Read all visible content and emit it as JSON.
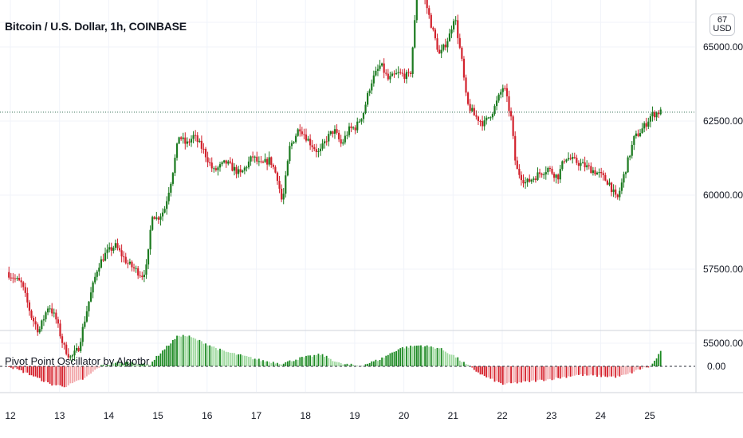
{
  "header": {
    "title": "Bitcoin / U.S. Dollar, 1h, COINBASE"
  },
  "currency_button": {
    "line1": "67",
    "line2": "USD"
  },
  "oscillator": {
    "title": "Pivot Point Oscillator by Algotbr",
    "zero_label": "0.00"
  },
  "colors": {
    "up": "#1b7a1f",
    "down": "#d2222d",
    "osc_pos_light": "#9fd99f",
    "osc_pos_dark": "#1d8a23",
    "osc_neg_light": "#f2a7aa",
    "osc_neg_dark": "#d5202b",
    "grid": "#f0f3fa",
    "axis_line": "#cfd3da"
  },
  "chart_data": [
    {
      "type": "candlestick",
      "title": "Bitcoin / U.S. Dollar, 1h, COINBASE",
      "x_ticks": [
        "12",
        "13",
        "14",
        "15",
        "16",
        "17",
        "18",
        "19",
        "20",
        "21",
        "22",
        "23",
        "24",
        "25"
      ],
      "y_ticks": [
        "55000.00",
        "57500.00",
        "60000.00",
        "62500.00",
        "65000.00"
      ],
      "ylim": [
        53500,
        67800
      ],
      "last_price_line": 62800,
      "price_path": [
        {
          "x": 11.95,
          "y": 57400
        },
        {
          "x": 12.25,
          "y": 57000
        },
        {
          "x": 12.45,
          "y": 55900
        },
        {
          "x": 12.6,
          "y": 55400
        },
        {
          "x": 12.8,
          "y": 56300
        },
        {
          "x": 12.95,
          "y": 55800
        },
        {
          "x": 13.1,
          "y": 54900
        },
        {
          "x": 13.25,
          "y": 54500
        },
        {
          "x": 13.4,
          "y": 54800
        },
        {
          "x": 13.6,
          "y": 56300
        },
        {
          "x": 13.8,
          "y": 57600
        },
        {
          "x": 13.95,
          "y": 58000
        },
        {
          "x": 14.15,
          "y": 58300
        },
        {
          "x": 14.4,
          "y": 57700
        },
        {
          "x": 14.7,
          "y": 57300
        },
        {
          "x": 14.8,
          "y": 57600
        },
        {
          "x": 14.9,
          "y": 59400
        },
        {
          "x": 15.0,
          "y": 59200
        },
        {
          "x": 15.15,
          "y": 59500
        },
        {
          "x": 15.3,
          "y": 60600
        },
        {
          "x": 15.45,
          "y": 62000
        },
        {
          "x": 15.6,
          "y": 61700
        },
        {
          "x": 15.75,
          "y": 62000
        },
        {
          "x": 15.95,
          "y": 61500
        },
        {
          "x": 16.15,
          "y": 60800
        },
        {
          "x": 16.4,
          "y": 61100
        },
        {
          "x": 16.7,
          "y": 60700
        },
        {
          "x": 16.95,
          "y": 61300
        },
        {
          "x": 17.1,
          "y": 61000
        },
        {
          "x": 17.3,
          "y": 61200
        },
        {
          "x": 17.45,
          "y": 60600
        },
        {
          "x": 17.55,
          "y": 59700
        },
        {
          "x": 17.7,
          "y": 61600
        },
        {
          "x": 17.9,
          "y": 62300
        },
        {
          "x": 18.1,
          "y": 61800
        },
        {
          "x": 18.3,
          "y": 61400
        },
        {
          "x": 18.45,
          "y": 61900
        },
        {
          "x": 18.6,
          "y": 62200
        },
        {
          "x": 18.75,
          "y": 61700
        },
        {
          "x": 18.9,
          "y": 62200
        },
        {
          "x": 19.05,
          "y": 62300
        },
        {
          "x": 19.2,
          "y": 62800
        },
        {
          "x": 19.35,
          "y": 63800
        },
        {
          "x": 19.55,
          "y": 64400
        },
        {
          "x": 19.7,
          "y": 63900
        },
        {
          "x": 19.9,
          "y": 64100
        },
        {
          "x": 20.15,
          "y": 64000
        },
        {
          "x": 20.3,
          "y": 67000
        },
        {
          "x": 20.45,
          "y": 66600
        },
        {
          "x": 20.6,
          "y": 65600
        },
        {
          "x": 20.75,
          "y": 64700
        },
        {
          "x": 20.95,
          "y": 65400
        },
        {
          "x": 21.05,
          "y": 66100
        },
        {
          "x": 21.2,
          "y": 64500
        },
        {
          "x": 21.3,
          "y": 63100
        },
        {
          "x": 21.45,
          "y": 62700
        },
        {
          "x": 21.65,
          "y": 62400
        },
        {
          "x": 21.85,
          "y": 62900
        },
        {
          "x": 22.05,
          "y": 63700
        },
        {
          "x": 22.2,
          "y": 62600
        },
        {
          "x": 22.3,
          "y": 60900
        },
        {
          "x": 22.5,
          "y": 60400
        },
        {
          "x": 22.75,
          "y": 60700
        },
        {
          "x": 22.95,
          "y": 60900
        },
        {
          "x": 23.15,
          "y": 60600
        },
        {
          "x": 23.3,
          "y": 61300
        },
        {
          "x": 23.55,
          "y": 61100
        },
        {
          "x": 23.8,
          "y": 60900
        },
        {
          "x": 24.0,
          "y": 60700
        },
        {
          "x": 24.2,
          "y": 60400
        },
        {
          "x": 24.35,
          "y": 59800
        },
        {
          "x": 24.5,
          "y": 60700
        },
        {
          "x": 24.7,
          "y": 61900
        },
        {
          "x": 24.9,
          "y": 62300
        },
        {
          "x": 25.05,
          "y": 62700
        },
        {
          "x": 25.2,
          "y": 62800
        }
      ]
    },
    {
      "type": "bar",
      "title": "Pivot Point Oscillator by Algotbr",
      "y_ticks": [
        "0.00"
      ],
      "ylim": [
        -1,
        1
      ],
      "oscillator_path": [
        {
          "x": 11.95,
          "y": 0.0
        },
        {
          "x": 12.4,
          "y": -0.18
        },
        {
          "x": 12.8,
          "y": -0.38
        },
        {
          "x": 13.1,
          "y": -0.42
        },
        {
          "x": 13.5,
          "y": -0.25
        },
        {
          "x": 13.8,
          "y": 0.0
        },
        {
          "x": 14.1,
          "y": 0.08
        },
        {
          "x": 14.5,
          "y": 0.08
        },
        {
          "x": 14.8,
          "y": 0.03
        },
        {
          "x": 15.0,
          "y": 0.25
        },
        {
          "x": 15.4,
          "y": 0.65
        },
        {
          "x": 15.6,
          "y": 0.63
        },
        {
          "x": 15.9,
          "y": 0.5
        },
        {
          "x": 16.3,
          "y": 0.32
        },
        {
          "x": 16.7,
          "y": 0.22
        },
        {
          "x": 17.1,
          "y": 0.12
        },
        {
          "x": 17.5,
          "y": 0.06
        },
        {
          "x": 17.9,
          "y": 0.18
        },
        {
          "x": 18.3,
          "y": 0.25
        },
        {
          "x": 18.7,
          "y": 0.05
        },
        {
          "x": 19.1,
          "y": 0.01
        },
        {
          "x": 19.5,
          "y": 0.15
        },
        {
          "x": 19.9,
          "y": 0.38
        },
        {
          "x": 20.3,
          "y": 0.44
        },
        {
          "x": 20.7,
          "y": 0.38
        },
        {
          "x": 21.0,
          "y": 0.22
        },
        {
          "x": 21.3,
          "y": 0.0
        },
        {
          "x": 21.6,
          "y": -0.2
        },
        {
          "x": 22.0,
          "y": -0.38
        },
        {
          "x": 22.3,
          "y": -0.34
        },
        {
          "x": 22.7,
          "y": -0.3
        },
        {
          "x": 23.1,
          "y": -0.25
        },
        {
          "x": 23.5,
          "y": -0.18
        },
        {
          "x": 23.9,
          "y": -0.2
        },
        {
          "x": 24.3,
          "y": -0.22
        },
        {
          "x": 24.5,
          "y": -0.18
        },
        {
          "x": 24.8,
          "y": -0.05
        },
        {
          "x": 25.0,
          "y": 0.0
        },
        {
          "x": 25.2,
          "y": 0.3
        }
      ]
    }
  ]
}
